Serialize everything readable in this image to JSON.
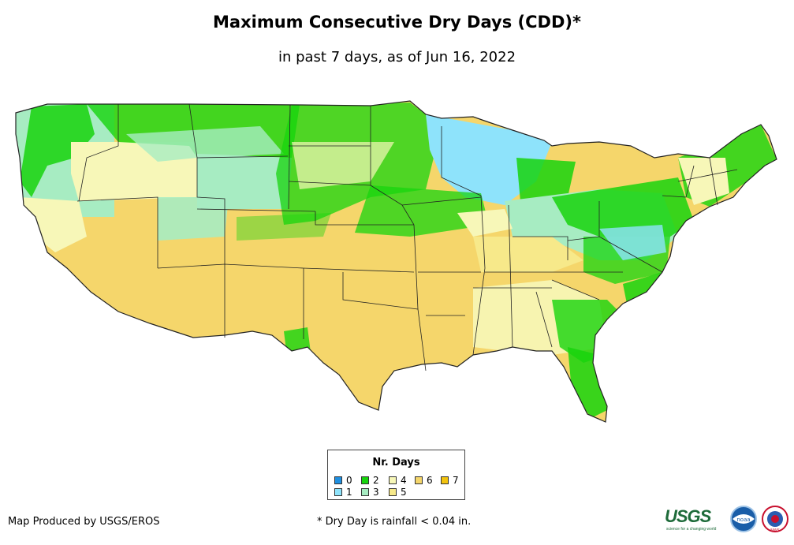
{
  "title": "Maximum Consecutive Dry Days (CDD)*",
  "subtitle": "in past 7 days, as of Jun 16, 2022",
  "legend": {
    "title": "Nr. Days",
    "items": [
      {
        "label": "0",
        "color": "#1f8fe0"
      },
      {
        "label": "1",
        "color": "#8ee3fb"
      },
      {
        "label": "2",
        "color": "#17d40d"
      },
      {
        "label": "3",
        "color": "#a7ecc2"
      },
      {
        "label": "4",
        "color": "#f7f7b8"
      },
      {
        "label": "5",
        "color": "#f7e98a"
      },
      {
        "label": "6",
        "color": "#f5d66b"
      },
      {
        "label": "7",
        "color": "#f2c30e"
      }
    ]
  },
  "credit": "Map Produced by USGS/EROS",
  "footnote": "* Dry Day is rainfall < 0.04 in.",
  "logos": {
    "usgs": "USGS",
    "usgs_tagline": "science for a changing world",
    "noaa": "noaa",
    "nws": "NWS"
  }
}
